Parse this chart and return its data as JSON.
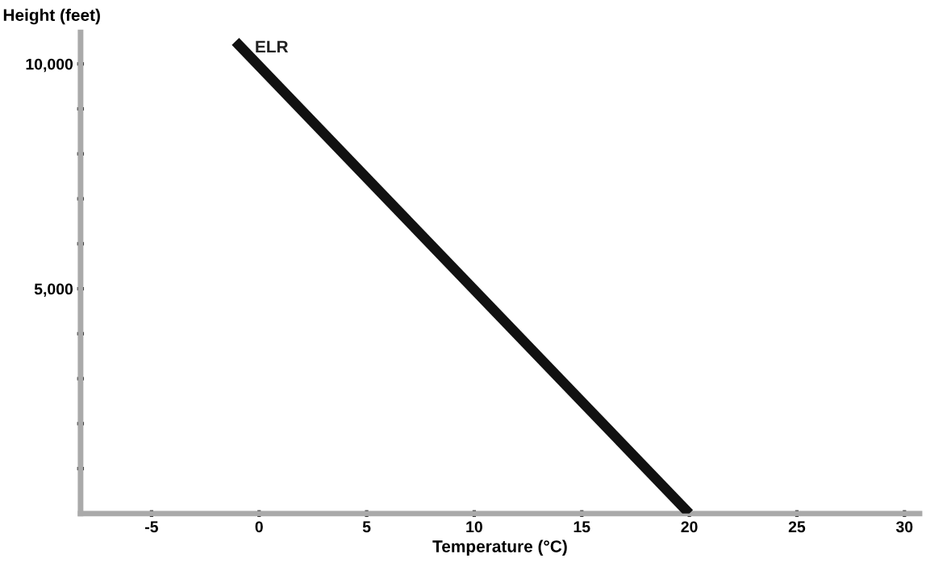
{
  "chart_data": {
    "type": "line",
    "xlabel": "Temperature (°C)",
    "ylabel": "Height (feet)",
    "series": [
      {
        "name": "ELR",
        "color": "#111111",
        "x": [
          -1.1,
          20
        ],
        "values": [
          10500,
          0
        ]
      }
    ],
    "xlim": [
      -8.3,
      30.7
    ],
    "xticks": [
      -5,
      0,
      5,
      10,
      15,
      20,
      25,
      30
    ],
    "ylim": [
      0,
      10700
    ],
    "yticks": [
      {
        "value": 1000,
        "label": null
      },
      {
        "value": 2000,
        "label": null
      },
      {
        "value": 3000,
        "label": null
      },
      {
        "value": 4000,
        "label": null
      },
      {
        "value": 5000,
        "label": "5,000"
      },
      {
        "value": 6000,
        "label": null
      },
      {
        "value": 7000,
        "label": null
      },
      {
        "value": 8000,
        "label": null
      },
      {
        "value": 9000,
        "label": null
      },
      {
        "value": 10000,
        "label": "10,000"
      }
    ],
    "grid": false,
    "legend": false,
    "marker": "none",
    "line_style": "solid"
  }
}
